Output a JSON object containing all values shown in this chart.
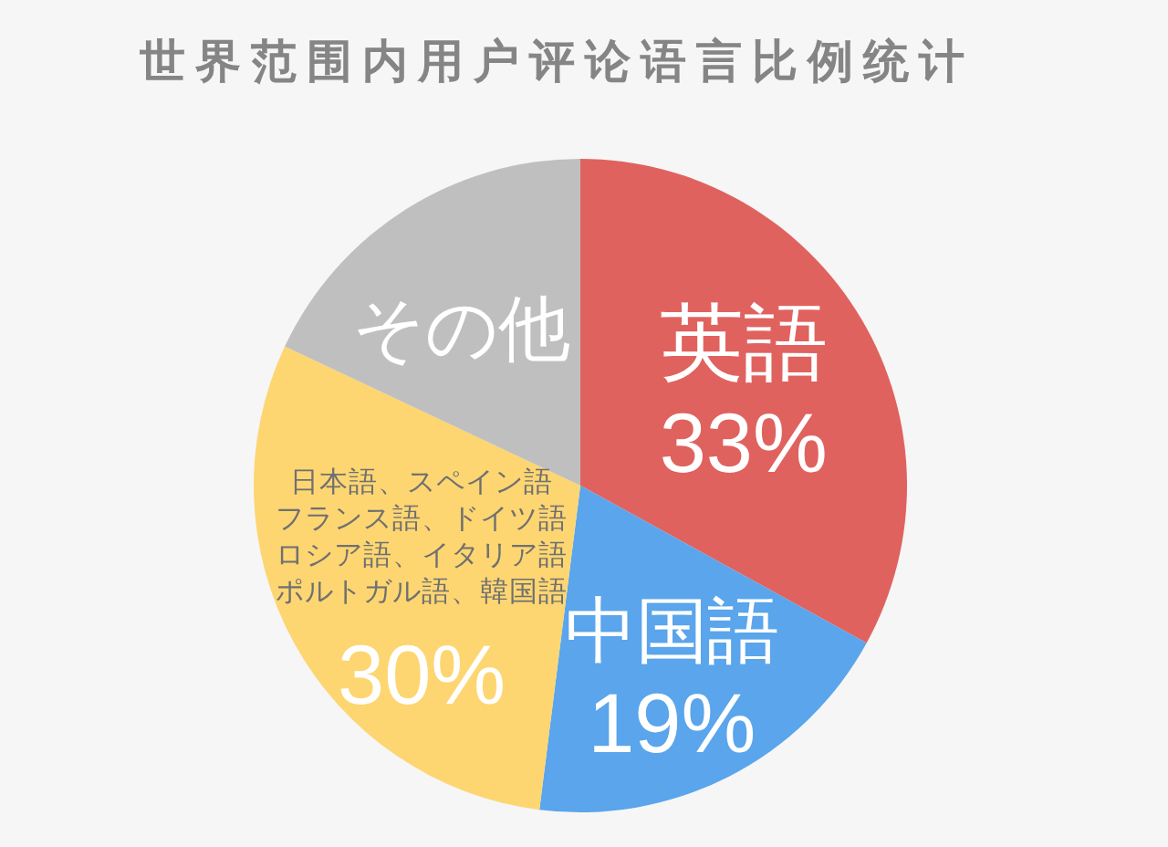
{
  "chart_data": {
    "type": "pie",
    "title": "世界范围内用户评论语言比例统计",
    "categories": [
      "英語",
      "中国語",
      "日本語、スペイン語フランス語、ドイツ語ロシア語、イタリア語ポルトガル語、韓国語",
      "その他"
    ],
    "values": [
      33,
      19,
      30,
      18
    ],
    "colors": [
      "#e0625f",
      "#5aa5eb",
      "#fdd672",
      "#bfbfbf"
    ],
    "value_labels": [
      "33%",
      "19%",
      "30%",
      null
    ]
  }
}
